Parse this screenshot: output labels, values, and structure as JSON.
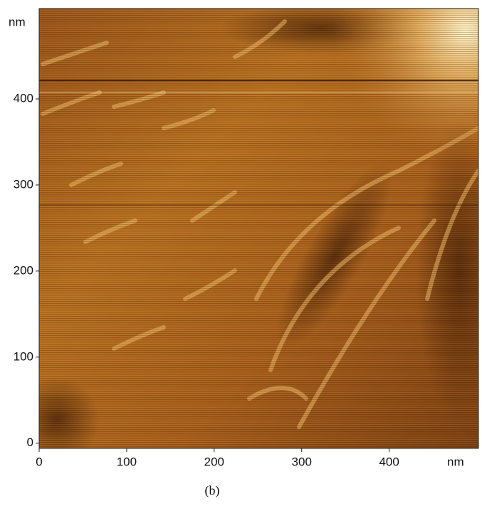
{
  "chart_data": {
    "type": "image",
    "xlabel": "nm",
    "ylabel": "nm",
    "xlim": [
      0,
      502
    ],
    "ylim": [
      -6,
      505
    ],
    "xticks": [
      0,
      100,
      200,
      300,
      400
    ],
    "yticks": [
      0,
      100,
      200,
      300,
      400
    ],
    "caption": "(b)"
  }
}
